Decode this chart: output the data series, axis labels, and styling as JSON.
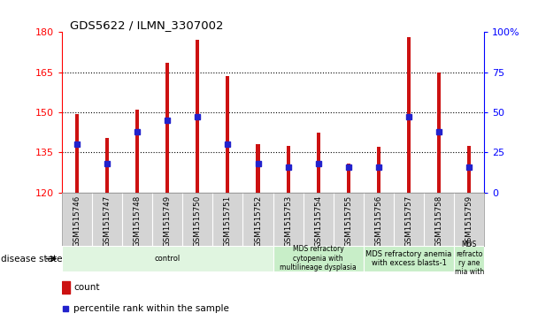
{
  "title": "GDS5622 / ILMN_3307002",
  "samples": [
    "GSM1515746",
    "GSM1515747",
    "GSM1515748",
    "GSM1515749",
    "GSM1515750",
    "GSM1515751",
    "GSM1515752",
    "GSM1515753",
    "GSM1515754",
    "GSM1515755",
    "GSM1515756",
    "GSM1515757",
    "GSM1515758",
    "GSM1515759"
  ],
  "counts": [
    149.5,
    140.5,
    151.0,
    168.5,
    177.0,
    163.5,
    138.0,
    137.5,
    142.5,
    131.0,
    137.0,
    178.0,
    165.0,
    137.5
  ],
  "percentile_ranks": [
    30,
    18,
    38,
    45,
    47,
    30,
    18,
    16,
    18,
    16,
    16,
    47,
    38,
    16
  ],
  "bar_color": "#cc1111",
  "percentile_color": "#2222cc",
  "ymin": 120,
  "ymax": 180,
  "yticks": [
    120,
    135,
    150,
    165,
    180
  ],
  "y2min": 0,
  "y2max": 100,
  "y2ticks": [
    0,
    25,
    50,
    75,
    100
  ],
  "disease_groups": [
    {
      "label": "control",
      "start": 0,
      "end": 7,
      "color": "#e0f5e0"
    },
    {
      "label": "MDS refractory\ncytopenia with\nmultilineage dysplasia",
      "start": 7,
      "end": 10,
      "color": "#c8eec8"
    },
    {
      "label": "MDS refractory anemia\nwith excess blasts-1",
      "start": 10,
      "end": 13,
      "color": "#c8eec8"
    },
    {
      "label": "MDS\nrefracto\nry ane\nmia with",
      "start": 13,
      "end": 14,
      "color": "#c8eec8"
    }
  ],
  "legend_count_label": "count",
  "legend_percentile_label": "percentile rank within the sample",
  "disease_state_label": "disease state",
  "bar_width": 0.12,
  "marker_size": 4.5
}
